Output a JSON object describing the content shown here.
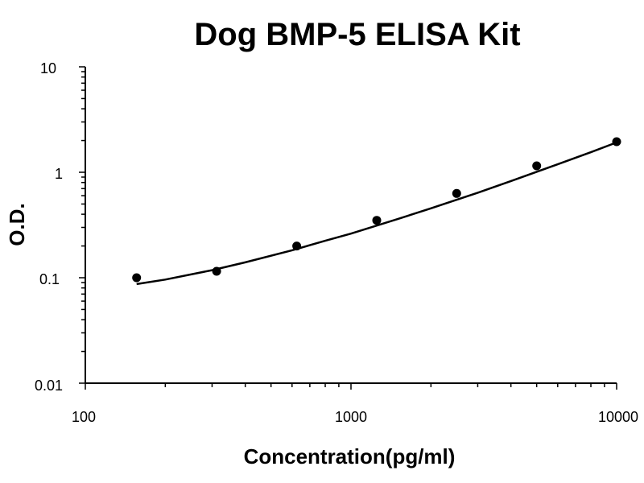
{
  "chart_data": {
    "type": "scatter",
    "title": "Dog BMP-5 ELISA Kit",
    "xlabel": "Concentration(pg/ml)",
    "ylabel": "O.D.",
    "x_scale": "log",
    "y_scale": "log",
    "xlim": [
      100,
      10000
    ],
    "ylim": [
      0.01,
      10
    ],
    "x_ticks": [
      "100",
      "1000",
      "10000"
    ],
    "y_ticks": [
      "0.01",
      "0.1",
      "1",
      "10"
    ],
    "grid": false,
    "legend": "none",
    "series": [
      {
        "type": "points",
        "x": [
          156,
          312,
          625,
          1250,
          2500,
          5000,
          10000
        ],
        "y": [
          0.1,
          0.115,
          0.2,
          0.35,
          0.63,
          1.15,
          1.95
        ]
      },
      {
        "type": "fitted-curve",
        "x": [
          156,
          200,
          300,
          400,
          600,
          800,
          1000,
          1500,
          2000,
          3000,
          4000,
          5000,
          6000,
          8000,
          10000
        ],
        "y": [
          0.087,
          0.096,
          0.118,
          0.14,
          0.182,
          0.224,
          0.262,
          0.36,
          0.455,
          0.64,
          0.825,
          1.01,
          1.19,
          1.55,
          1.92
        ]
      }
    ]
  }
}
